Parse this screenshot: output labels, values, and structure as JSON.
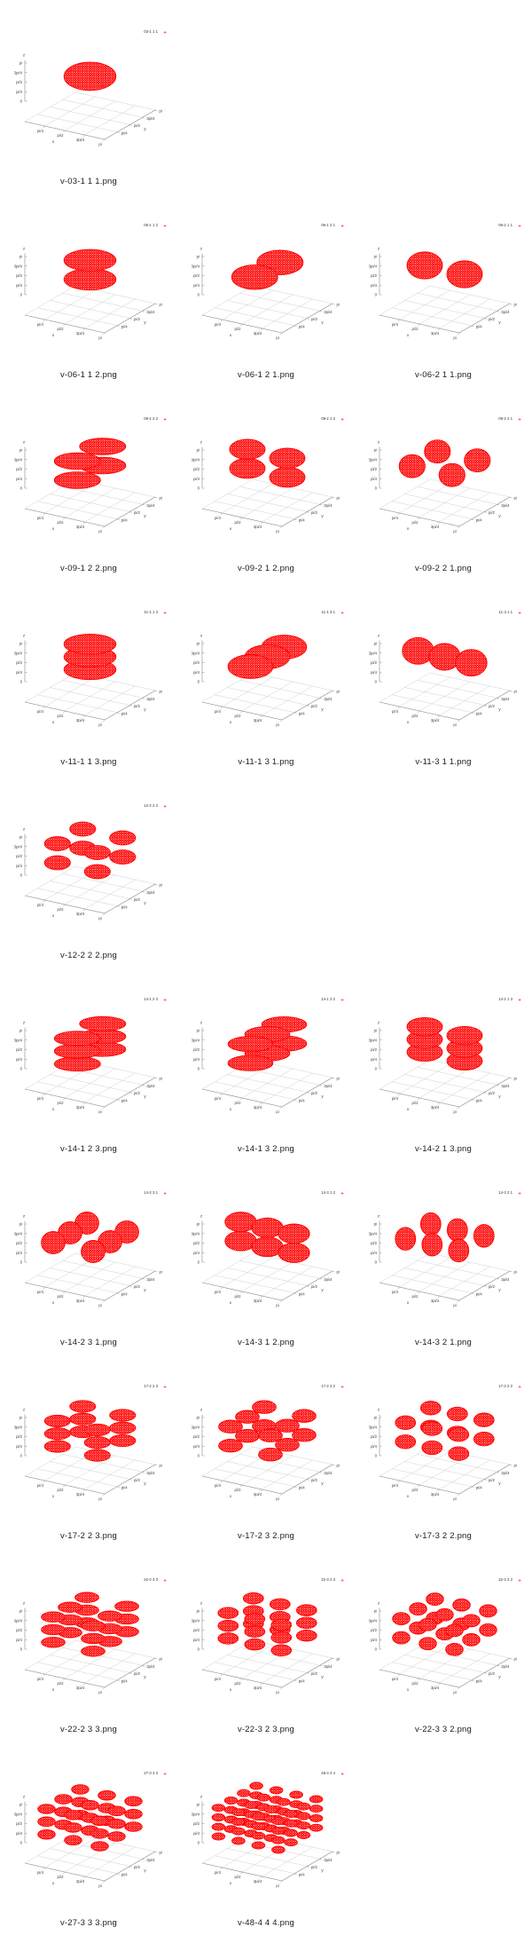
{
  "page": {
    "background": "#ffffff"
  },
  "style": {
    "grid_color": "#c4c4c4",
    "axis_line_color": "#8a8a8a",
    "tick_text_color": "#3d3d3d",
    "legend_text_color": "#333333",
    "caption_color": "#1a1a1a"
  },
  "gallery": {
    "columns": 3,
    "layout": [
      [
        0,
        null,
        null
      ],
      [
        1,
        2,
        3
      ],
      [
        4,
        5,
        6
      ],
      [
        7,
        8,
        9
      ],
      [
        10,
        null,
        null
      ],
      [
        11,
        12,
        13
      ],
      [
        14,
        15,
        16
      ],
      [
        17,
        18,
        19
      ],
      [
        20,
        21,
        22
      ],
      [
        23,
        24,
        null
      ]
    ]
  },
  "chart_data": {
    "type": "scatter",
    "subtype": "3d-point-cloud-ellipsoids",
    "marker": "+",
    "point_color": "#ff0000",
    "axis": {
      "x_label": "x",
      "y_label": "y",
      "z_label": "z",
      "range": [
        0,
        3.1416
      ],
      "x_ticks": [
        "pi/4",
        "pi/2",
        "3pi/4",
        "pi"
      ],
      "y_ticks": [
        "pi/4",
        "pi/2",
        "3pi/4",
        "pi"
      ],
      "z_ticks": [
        "0",
        "pi/4",
        "pi/2",
        "3pi/4",
        "pi"
      ],
      "grid": true,
      "legend_position": "top-right"
    },
    "plots": [
      {
        "file": "v-03-1 1 1.png",
        "legend": "03-1 1 1",
        "counts": [
          1,
          1,
          1
        ],
        "clusters": 1,
        "centers_x": [
          1.5708
        ],
        "centers_y": [
          1.5708
        ],
        "centers_z": [
          1.5708
        ]
      },
      {
        "file": "v-06-1 1 2.png",
        "legend": "06-1 1 2",
        "counts": [
          1,
          1,
          2
        ],
        "clusters": 2,
        "centers_x": [
          1.5708
        ],
        "centers_y": [
          1.5708
        ],
        "centers_z": [
          0.7854,
          2.3562
        ]
      },
      {
        "file": "v-06-1 2 1.png",
        "legend": "06-1 2 1",
        "counts": [
          1,
          2,
          1
        ],
        "clusters": 2,
        "centers_x": [
          1.5708
        ],
        "centers_y": [
          0.7854,
          2.3562
        ],
        "centers_z": [
          1.5708
        ]
      },
      {
        "file": "v-06-2 1 1.png",
        "legend": "06-2 1 1",
        "counts": [
          2,
          1,
          1
        ],
        "clusters": 2,
        "centers_x": [
          0.7854,
          2.3562
        ],
        "centers_y": [
          1.5708
        ],
        "centers_z": [
          1.5708
        ]
      },
      {
        "file": "v-09-1 2 2.png",
        "legend": "09-1 2 2",
        "counts": [
          1,
          2,
          2
        ],
        "clusters": 4,
        "centers_x": [
          1.5708
        ],
        "centers_y": [
          0.7854,
          2.3562
        ],
        "centers_z": [
          0.7854,
          2.3562
        ]
      },
      {
        "file": "v-09-2 1 2.png",
        "legend": "09-2 1 2",
        "counts": [
          2,
          1,
          2
        ],
        "clusters": 4,
        "centers_x": [
          0.7854,
          2.3562
        ],
        "centers_y": [
          1.5708
        ],
        "centers_z": [
          0.7854,
          2.3562
        ]
      },
      {
        "file": "v-09-2 2 1.png",
        "legend": "09-2 2 1",
        "counts": [
          2,
          2,
          1
        ],
        "clusters": 4,
        "centers_x": [
          0.7854,
          2.3562
        ],
        "centers_y": [
          0.7854,
          2.3562
        ],
        "centers_z": [
          1.5708
        ]
      },
      {
        "file": "v-11-1 1 3.png",
        "legend": "11-1 1 3",
        "counts": [
          1,
          1,
          3
        ],
        "clusters": 3,
        "centers_x": [
          1.5708
        ],
        "centers_y": [
          1.5708
        ],
        "centers_z": [
          0.5236,
          1.5708,
          2.618
        ]
      },
      {
        "file": "v-11-1 3 1.png",
        "legend": "11-1 3 1",
        "counts": [
          1,
          3,
          1
        ],
        "clusters": 3,
        "centers_x": [
          1.5708
        ],
        "centers_y": [
          0.5236,
          1.5708,
          2.618
        ],
        "centers_z": [
          1.5708
        ]
      },
      {
        "file": "v-11-3 1 1.png",
        "legend": "11-3 1 1",
        "counts": [
          3,
          1,
          1
        ],
        "clusters": 3,
        "centers_x": [
          0.5236,
          1.5708,
          2.618
        ],
        "centers_y": [
          1.5708
        ],
        "centers_z": [
          1.5708
        ]
      },
      {
        "file": "v-12-2 2 2.png",
        "legend": "12-2 2 2",
        "counts": [
          2,
          2,
          2
        ],
        "clusters": 8,
        "centers_x": [
          0.7854,
          2.3562
        ],
        "centers_y": [
          0.7854,
          2.3562
        ],
        "centers_z": [
          0.7854,
          2.3562
        ]
      },
      {
        "file": "v-14-1 2 3.png",
        "legend": "14-1 2 3",
        "counts": [
          1,
          2,
          3
        ],
        "clusters": 6,
        "centers_x": [
          1.5708
        ],
        "centers_y": [
          0.7854,
          2.3562
        ],
        "centers_z": [
          0.5236,
          1.5708,
          2.618
        ]
      },
      {
        "file": "v-14-1 3 2.png",
        "legend": "14-1 3 2",
        "counts": [
          1,
          3,
          2
        ],
        "clusters": 6,
        "centers_x": [
          1.5708
        ],
        "centers_y": [
          0.5236,
          1.5708,
          2.618
        ],
        "centers_z": [
          0.7854,
          2.3562
        ]
      },
      {
        "file": "v-14-2 1 3.png",
        "legend": "14-2 1 3",
        "counts": [
          2,
          1,
          3
        ],
        "clusters": 6,
        "centers_x": [
          0.7854,
          2.3562
        ],
        "centers_y": [
          1.5708
        ],
        "centers_z": [
          0.5236,
          1.5708,
          2.618
        ]
      },
      {
        "file": "v-14-2 3 1.png",
        "legend": "14-2 3 1",
        "counts": [
          2,
          3,
          1
        ],
        "clusters": 6,
        "centers_x": [
          0.7854,
          2.3562
        ],
        "centers_y": [
          0.5236,
          1.5708,
          2.618
        ],
        "centers_z": [
          1.5708
        ]
      },
      {
        "file": "v-14-3 1 2.png",
        "legend": "14-3 1 2",
        "counts": [
          3,
          1,
          2
        ],
        "clusters": 6,
        "centers_x": [
          0.5236,
          1.5708,
          2.618
        ],
        "centers_y": [
          1.5708
        ],
        "centers_z": [
          0.7854,
          2.3562
        ]
      },
      {
        "file": "v-14-3 2 1.png",
        "legend": "14-3 2 1",
        "counts": [
          3,
          2,
          1
        ],
        "clusters": 6,
        "centers_x": [
          0.5236,
          1.5708,
          2.618
        ],
        "centers_y": [
          0.7854,
          2.3562
        ],
        "centers_z": [
          1.5708
        ]
      },
      {
        "file": "v-17-2 2 3.png",
        "legend": "17-2 2 3",
        "counts": [
          2,
          2,
          3
        ],
        "clusters": 12,
        "centers_x": [
          0.7854,
          2.3562
        ],
        "centers_y": [
          0.7854,
          2.3562
        ],
        "centers_z": [
          0.5236,
          1.5708,
          2.618
        ]
      },
      {
        "file": "v-17-2 3 2.png",
        "legend": "17-2 3 2",
        "counts": [
          2,
          3,
          2
        ],
        "clusters": 12,
        "centers_x": [
          0.7854,
          2.3562
        ],
        "centers_y": [
          0.5236,
          1.5708,
          2.618
        ],
        "centers_z": [
          0.7854,
          2.3562
        ]
      },
      {
        "file": "v-17-3 2 2.png",
        "legend": "17-3 2 2",
        "counts": [
          3,
          2,
          2
        ],
        "clusters": 12,
        "centers_x": [
          0.5236,
          1.5708,
          2.618
        ],
        "centers_y": [
          0.7854,
          2.3562
        ],
        "centers_z": [
          0.7854,
          2.3562
        ]
      },
      {
        "file": "v-22-2 3 3.png",
        "legend": "22-2 3 3",
        "counts": [
          2,
          3,
          3
        ],
        "clusters": 18,
        "centers_x": [
          0.7854,
          2.3562
        ],
        "centers_y": [
          0.5236,
          1.5708,
          2.618
        ],
        "centers_z": [
          0.5236,
          1.5708,
          2.618
        ]
      },
      {
        "file": "v-22-3 2 3.png",
        "legend": "22-3 2 3",
        "counts": [
          3,
          2,
          3
        ],
        "clusters": 18,
        "centers_x": [
          0.5236,
          1.5708,
          2.618
        ],
        "centers_y": [
          0.7854,
          2.3562
        ],
        "centers_z": [
          0.5236,
          1.5708,
          2.618
        ]
      },
      {
        "file": "v-22-3 3 2.png",
        "legend": "22-3 3 2",
        "counts": [
          3,
          3,
          2
        ],
        "clusters": 18,
        "centers_x": [
          0.5236,
          1.5708,
          2.618
        ],
        "centers_y": [
          0.5236,
          1.5708,
          2.618
        ],
        "centers_z": [
          0.7854,
          2.3562
        ]
      },
      {
        "file": "v-27-3 3 3.png",
        "legend": "27-3 3 3",
        "counts": [
          3,
          3,
          3
        ],
        "clusters": 27,
        "centers_x": [
          0.5236,
          1.5708,
          2.618
        ],
        "centers_y": [
          0.5236,
          1.5708,
          2.618
        ],
        "centers_z": [
          0.5236,
          1.5708,
          2.618
        ]
      },
      {
        "file": "v-48-4 4 4.png",
        "legend": "48-4 4 4",
        "counts": [
          4,
          4,
          4
        ],
        "clusters": 64,
        "centers_x": [
          0.3927,
          1.1781,
          1.9635,
          2.7489
        ],
        "centers_y": [
          0.3927,
          1.1781,
          1.9635,
          2.7489
        ],
        "centers_z": [
          0.3927,
          1.1781,
          1.9635,
          2.7489
        ]
      }
    ]
  }
}
